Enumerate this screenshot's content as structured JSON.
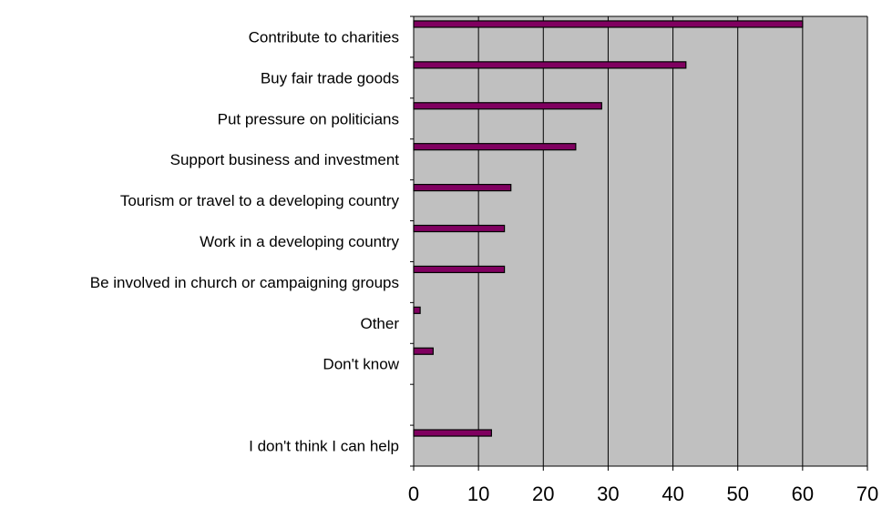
{
  "chart_data": {
    "type": "bar",
    "orientation": "horizontal",
    "categories": [
      "Contribute to charities",
      "Buy fair trade goods",
      "Put pressure on politicians",
      "Support business and investment",
      "Tourism or travel to a developing country",
      "Work in a developing country",
      "Be involved in church or campaigning groups",
      "Other",
      "Don't know",
      "",
      "I don't think I can help"
    ],
    "values": [
      60,
      42,
      29,
      25,
      15,
      14,
      14,
      1,
      3,
      null,
      12
    ],
    "xlim": [
      0,
      70
    ],
    "xticks": [
      0,
      10,
      20,
      30,
      40,
      50,
      60,
      70
    ],
    "grid": "vertical",
    "legend": "none",
    "colors": {
      "plot_background": "#c0c0c0",
      "bar_fill": "#800060",
      "bar_edge": "#000000",
      "grid": "#000000"
    }
  }
}
